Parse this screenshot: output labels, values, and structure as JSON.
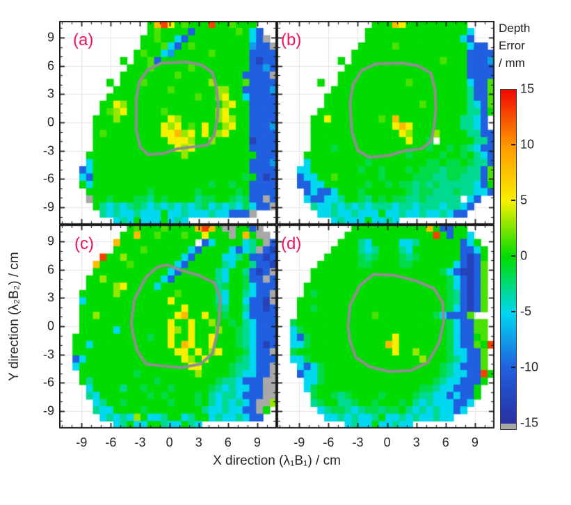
{
  "figure": {
    "xlabel": "X direction (λ₁B₁) / cm",
    "ylabel": "Y direction (λ₂B₂) / cm",
    "panel_label_color": "#ee1457"
  },
  "chart_data": {
    "type": "heatmap",
    "xlabel": "X direction (λ₁B₁) / cm",
    "ylabel": "Y direction (λ₂B₂) / cm",
    "xlim": [
      -11.3,
      11.0
    ],
    "ylim": [
      -10.84,
      10.77
    ],
    "xticks": [
      -9,
      -6,
      -3,
      0,
      3,
      6,
      9
    ],
    "yticks": [
      9,
      6,
      3,
      0,
      -3,
      -6,
      -9
    ],
    "grid_step": 3,
    "grid_on": true,
    "colorbar": {
      "title_lines": [
        "Depth",
        "Error",
        "/ mm"
      ],
      "ticks": [
        15,
        10,
        5,
        0,
        -5,
        -10,
        -15
      ],
      "range": [
        -15,
        15
      ],
      "stops": [
        {
          "value": 15,
          "color": "#f00800"
        },
        {
          "value": 10,
          "color": "#ff9800"
        },
        {
          "value": 5,
          "color": "#f8f000"
        },
        {
          "value": 0,
          "color": "#00dc00"
        },
        {
          "value": -5,
          "color": "#00d8f0"
        },
        {
          "value": -10,
          "color": "#2060e0"
        },
        {
          "value": -15,
          "color": "#2830a0"
        }
      ],
      "out_of_range_color": "#a8a8a8"
    },
    "value_key": {
      ".": null,
      "g": 0,
      "G": 1.5,
      "e": -1.5,
      "Y": 3,
      "y": 5,
      "o": 8,
      "r": 13,
      "t": -3,
      "c": -5,
      "C": -7.5,
      "b": -10,
      "B": -13,
      "x": "oor"
    },
    "grid_cols": 32,
    "grid_rows": 28,
    "panels": [
      {
        "label": "(a)",
        "label_offset": [
          20,
          14
        ],
        "contour": [
          [
            -3.4,
            -0.8
          ],
          [
            -3.4,
            2.5
          ],
          [
            -3.1,
            4.3
          ],
          [
            -2.2,
            5.6
          ],
          [
            -0.8,
            6.3
          ],
          [
            1.8,
            6.4
          ],
          [
            3.3,
            6.1
          ],
          [
            4.4,
            5.3
          ],
          [
            4.8,
            3.8
          ],
          [
            5.0,
            2.0
          ],
          [
            4.9,
            0.3
          ],
          [
            4.6,
            -1.3
          ],
          [
            3.9,
            -2.4
          ],
          [
            2.3,
            -2.6
          ],
          [
            0.8,
            -2.8
          ],
          [
            -0.6,
            -3.3
          ],
          [
            -2.2,
            -3.4
          ],
          [
            -3.0,
            -2.6
          ]
        ],
        "grid": [
          ".............gorygGgggrggGggg...",
          ".............gGggggbggggggGgcb..",
          "............ggGggcbgggggggggcbx.",
          "............gggGcbgGggggggggCbbx",
          "...........gGggcCgggggGgggggbbbb",
          ".........g.ggGbgggggggggggggbBbb",
          "..........gggGgggggGggggggggbbCb",
          ".........ggggggggGgggggggggbbbbx",
          ".......g.gggGgggggggggYggggGbbbb",
          "........ggggggggGggggggYYggbbbbC",
          ".......gggggggggggggGggYyggcbbbb",
          "......ggyYggggggggggggggYyggbbbb",
          "......gGYygggggGgggggggYygggbbbb",
          ".....gggYgggggggyYgggggYyYggbbbb",
          ".....ggggggggggyYygGgyggYyggbbbC",
          ".....gGggggggggyyoYygygYygggbbbb",
          ".....gggggggggggyyyYggYgggggBbbb",
          ".....ggggggggggggyYyggggggggbbbb",
          "....ggggggggggggggYggggggggggbbb",
          "....cgggggggggggggggggggggggbbbC",
          "...bcgggggggggggggggggggggggbbbb",
          "...cbggggggggggggggggggggggegbBb",
          "...gcgggggggggggggggggeggeggbbbb",
          "....gggggggggeggggggegggggegbbbb",
          "....xggegggeetgeggggteeggetebbxb",
          ".....gtctctetctctctctectctcecbbx",
          "......tctcctcccgcctccctccbbbx...",
          "........ctcgcccgctc............."
        ]
      },
      {
        "label": "(b)",
        "label_offset": [
          6,
          14
        ],
        "contour": [
          [
            -3.6,
            -1.0
          ],
          [
            -3.8,
            2.0
          ],
          [
            -3.5,
            4.0
          ],
          [
            -2.6,
            5.5
          ],
          [
            -1.2,
            6.2
          ],
          [
            1.5,
            6.3
          ],
          [
            3.2,
            6.0
          ],
          [
            4.5,
            5.2
          ],
          [
            4.9,
            3.5
          ],
          [
            5.0,
            1.5
          ],
          [
            4.8,
            -0.5
          ],
          [
            4.5,
            -2.0
          ],
          [
            3.5,
            -2.8
          ],
          [
            1.8,
            -3.0
          ],
          [
            0.2,
            -3.5
          ],
          [
            -1.8,
            -3.7
          ],
          [
            -3.0,
            -3.0
          ]
        ],
        "grid": [
          "..............gggoyggggggggg....",
          ".............gggggggggggggggc...",
          ".............ggggggggggggggcb...",
          "............gggggGggggggggggcbb.",
          "...........gggggggggggggggggbbbb",
          ".........g.gggggggggggggGgggbbbC",
          "..........ggggggggggggggggggbbbb",
          ".........gggggggggggggggggggbbbb",
          "......g..ggggggggggGggggggggcbbG",
          "........ggggggggggggggggggggtbbG",
          ".......gggggggggggggggggggggtbbG",
          ".......ggggggggggggggGggggggtcbG",
          "......ggggggggggggggggggggggttbg",
          ".....ggygggggggGgogggggggggttcb.",
          ".....ggggggggggggyoygggggggttcb.",
          ".....gggggggggggggyYgggYggggttbb",
          ".....ggggggggggggggygge gggggttbb",
          ".....gggegggggggggggggeggegetcbb",
          "....gggggggggggggggeggggeggegtcbG",
          "....cggggggggeggggggggeegeegettbG",
          "...ccgggggggeggegggegeeeteeettbG",
          "...bccggGggggggeggggeeetteetttbG",
          "...bbccggggggeggegeetetetttttcbg",
          "....bcbbcgggeggggggeteetttettccbb",
          "....cbbcctggetgegeettetttttтcb..",
          ".....tcctctctctttcttctttcttcb...",
          "......cctcctcccgcctcctcctcbb....",
          "........ctcccgcctc.............."
        ]
      },
      {
        "label": "(c)",
        "label_offset": [
          22,
          14
        ],
        "contour": [
          [
            -3.7,
            -1.0
          ],
          [
            -3.9,
            0.3
          ],
          [
            -3.6,
            2.8
          ],
          [
            -2.4,
            5.2
          ],
          [
            -1.2,
            6.3
          ],
          [
            -0.2,
            6.5
          ],
          [
            1.0,
            6.0
          ],
          [
            3.0,
            5.4
          ],
          [
            4.6,
            4.6
          ],
          [
            5.2,
            3.0
          ],
          [
            5.1,
            0.8
          ],
          [
            4.8,
            -1.2
          ],
          [
            4.4,
            -2.9
          ],
          [
            3.2,
            -4.0
          ],
          [
            1.2,
            -4.4
          ],
          [
            -0.8,
            -4.2
          ],
          [
            -2.4,
            -4.0
          ],
          [
            -3.3,
            -2.6
          ]
        ],
        "grid": [
          "..........gGgggGggggorogxxggbx..",
          ".........ggoggGgggGggygggxgogxx.",
          "........oggggggggggg bcggggctgxbb",
          "........ggggGggggggcbggggcbctxbB",
          "......rggYggggggggcbggggcctgbbBb",
          ".....oggggGggggggcbgggggtcggtbbB",
          ".....gggggggggggcbgggggtcggtbBbx",
          "....ggYggggggggcbggggggtcggebbxb",
          "....ggggYyggggcggggggggteggecbbb",
          "...gggggYggggggggGgggggtcggtcbbx",
          "...cggggggggggggyggggggtcggcbbBx",
          "...gggggggggggggggyggggetggtbbBb",
          "...ggYgggggggggggyoggyggeggcbbbb",
          "...gggggggggggggyggyggYggegtcbbb",
          "...gggggcgggggggyYgygggYggetcbbb",
          "..gggggggggggeggyggyggygggetcbbb",
          "..ggcgggggggggggygoyggygggetcbBb",
          "..gggggggggggggggyygygYygggecbbx",
          "..bcggggggggggggggyYgyggggetcbbb",
          "..cggggggggggggggggyyggggettcbbx",
          "...ggggggggeggggggggYggggetccbbxx",
          "...gtgggggggggeggggggggettcbbbxx",
          "....cggggtggegggegggggetctccbbxx",
          "....tcgggggggegeggggegtcttcbbbxx",
          ".....ctggeggggggegggegtctctcbxxY",
          ".....tccggggeggggggggtcctccbbxg.",
          "......ctctcYgcctggctggctcctcbb..",
          "........ctgccggtccgtc..........."
        ]
      },
      {
        "label": "(d)",
        "label_offset": [
          6,
          14
        ],
        "contour": [
          [
            -3.8,
            -1.6
          ],
          [
            -4.0,
            0.0
          ],
          [
            -3.8,
            2.2
          ],
          [
            -2.8,
            4.3
          ],
          [
            -1.4,
            5.5
          ],
          [
            0.8,
            5.4
          ],
          [
            3.0,
            4.8
          ],
          [
            4.8,
            4.0
          ],
          [
            5.7,
            2.5
          ],
          [
            5.8,
            0.5
          ],
          [
            5.3,
            -1.8
          ],
          [
            4.2,
            -3.8
          ],
          [
            2.4,
            -4.7
          ],
          [
            0.2,
            -4.8
          ],
          [
            -1.8,
            -4.3
          ],
          [
            -3.2,
            -3.3
          ]
        ],
        "grid": [
          "...........gggggggggggogbbgg....",
          "..........gggggggggggggrgbggc...",
          ".........gggtcggggcctggggggbcg..",
          "........ggggtctgggtcgggggggbbcg.",
          ".......gggggetegggeteggggggbBbg.",
          "......ggggggeeggggeeggggggcbBbG.",
          ".....gggggggggggggggggggecbBBbG.",
          ".....ggggggggggggggggggggecbBbG.",
          "....gggggggggggggggggggggecbBbG.",
          "....gegggggggggggggggggggetbBbG.",
          "...ggggggggggggggggggggggetbBbG.",
          "...ggegggggggggggggggggggecbBbG.",
          "...gggggggggggGggggggggecbbbG...",
          "..eggggggggggggggggggggggecbbGG.",
          "..cegggggggggggggggggggggecbbGG.",
          "..cbeggggggggggggygggggggecbbgG.",
          "..ccegggggggggggoygggggggecbbGgr",
          "..eggggggggggggggyggYggggeccbbG.",
          "..cceggggggggggggggggYgggetcbbG.",
          "...cbcegggggggggggggggggetcbbbG.",
          "...bccegggggggggggggggggetccbbrg",
          "....cceggggggggggggggggetccbbbg.",
          "....cegggggggggggggggeetccbbbg..",
          ".....eggeteggggeggggettccbcbbg..",
          ".....teggtteggegggegtctcccbbc...",
          "......cteetcteeteegtctctccbc....",
          ".......cctctcctgcctctcctcc......",
          "..........ctccgcctcc............"
        ]
      }
    ]
  }
}
